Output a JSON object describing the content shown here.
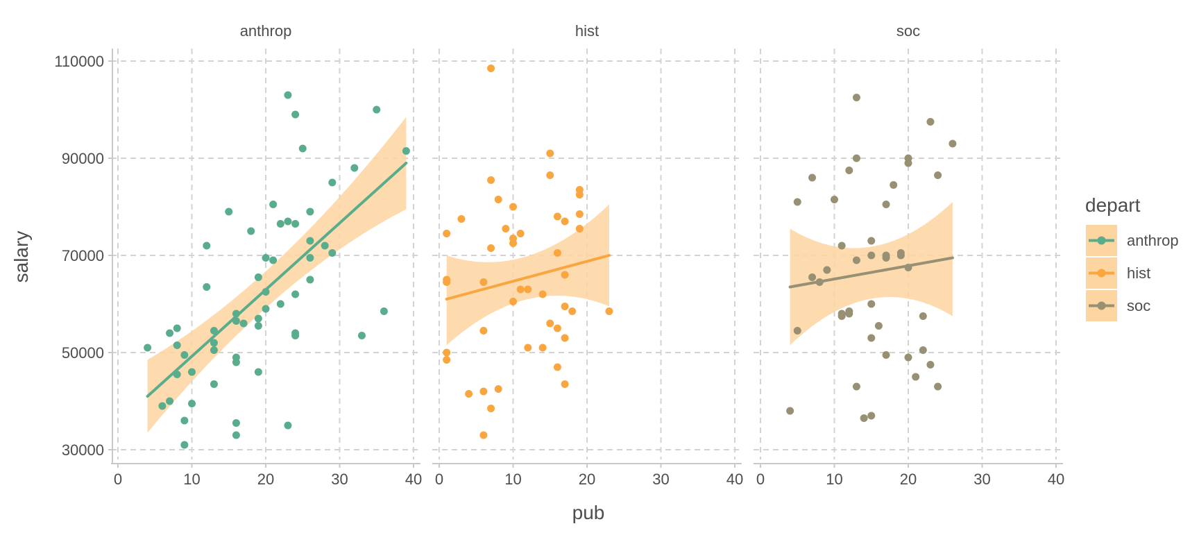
{
  "chart_data": {
    "type": "scatter",
    "facet_by": "depart",
    "xlabel": "pub",
    "ylabel": "salary",
    "xlim": [
      0,
      40
    ],
    "ylim": [
      30000,
      110000
    ],
    "x_ticks": [
      0,
      10,
      20,
      30,
      40
    ],
    "y_ticks": [
      30000,
      50000,
      70000,
      90000,
      110000
    ],
    "x_tick_labels": [
      "0",
      "10",
      "20",
      "30",
      "40"
    ],
    "y_tick_labels": [
      "30000",
      "50000",
      "70000",
      "90000",
      "110000"
    ],
    "grid": true,
    "grid_style": "dashed",
    "legend": {
      "title": "depart",
      "placement": "right",
      "band_color": "#fdd5a0"
    },
    "band_color": "#fdd5a0",
    "panels": [
      {
        "name": "anthrop",
        "color": "#59ad8d",
        "fit": {
          "x": [
            4,
            39
          ],
          "y": [
            41000,
            89000
          ],
          "ci_lower": [
            33500,
            79500
          ],
          "ci_upper": [
            48500,
            98500
          ]
        },
        "points": [
          [
            4,
            51000
          ],
          [
            6,
            39000
          ],
          [
            7,
            40000
          ],
          [
            7,
            54000
          ],
          [
            8,
            55000
          ],
          [
            8,
            51500
          ],
          [
            8,
            45500
          ],
          [
            9,
            49500
          ],
          [
            9,
            36000
          ],
          [
            9,
            31000
          ],
          [
            10,
            39500
          ],
          [
            10,
            46000
          ],
          [
            12,
            72000
          ],
          [
            12,
            63500
          ],
          [
            13,
            54500
          ],
          [
            13,
            52000
          ],
          [
            13,
            50500
          ],
          [
            13,
            43500
          ],
          [
            15,
            79000
          ],
          [
            16,
            58000
          ],
          [
            16,
            56500
          ],
          [
            16,
            49000
          ],
          [
            16,
            48000
          ],
          [
            16,
            35500
          ],
          [
            16,
            33000
          ],
          [
            17,
            56000
          ],
          [
            18,
            75000
          ],
          [
            19,
            65500
          ],
          [
            19,
            57000
          ],
          [
            19,
            55500
          ],
          [
            19,
            46000
          ],
          [
            20,
            69500
          ],
          [
            20,
            62500
          ],
          [
            20,
            59000
          ],
          [
            21,
            80500
          ],
          [
            21,
            69000
          ],
          [
            22,
            76500
          ],
          [
            22,
            60000
          ],
          [
            23,
            103000
          ],
          [
            23,
            77000
          ],
          [
            23,
            35000
          ],
          [
            24,
            99000
          ],
          [
            24,
            76500
          ],
          [
            24,
            62000
          ],
          [
            24,
            54000
          ],
          [
            24,
            53500
          ],
          [
            25,
            92000
          ],
          [
            26,
            79000
          ],
          [
            26,
            73000
          ],
          [
            26,
            69500
          ],
          [
            26,
            65000
          ],
          [
            28,
            72000
          ],
          [
            29,
            85000
          ],
          [
            29,
            70500
          ],
          [
            32,
            88000
          ],
          [
            33,
            53500
          ],
          [
            35,
            100000
          ],
          [
            36,
            58500
          ],
          [
            39,
            91500
          ]
        ]
      },
      {
        "name": "hist",
        "color": "#f9a540",
        "fit": {
          "x": [
            1,
            23
          ],
          "y": [
            61000,
            70000
          ],
          "ci_lower": [
            51500,
            59500
          ],
          "ci_upper": [
            70000,
            80500
          ]
        },
        "points": [
          [
            1,
            74500
          ],
          [
            1,
            65000
          ],
          [
            1,
            64500
          ],
          [
            1,
            50000
          ],
          [
            1,
            48500
          ],
          [
            3,
            77500
          ],
          [
            4,
            41500
          ],
          [
            6,
            64500
          ],
          [
            6,
            54500
          ],
          [
            6,
            42000
          ],
          [
            6,
            33000
          ],
          [
            7,
            108500
          ],
          [
            7,
            85500
          ],
          [
            7,
            71500
          ],
          [
            7,
            38500
          ],
          [
            8,
            81500
          ],
          [
            8,
            42500
          ],
          [
            9,
            75500
          ],
          [
            10,
            80000
          ],
          [
            10,
            73500
          ],
          [
            10,
            72500
          ],
          [
            10,
            60500
          ],
          [
            11,
            74500
          ],
          [
            11,
            63000
          ],
          [
            12,
            63000
          ],
          [
            12,
            51000
          ],
          [
            14,
            62000
          ],
          [
            14,
            51000
          ],
          [
            15,
            91000
          ],
          [
            15,
            86500
          ],
          [
            15,
            56000
          ],
          [
            16,
            78000
          ],
          [
            16,
            70500
          ],
          [
            16,
            55000
          ],
          [
            16,
            47000
          ],
          [
            17,
            77000
          ],
          [
            17,
            66000
          ],
          [
            17,
            59500
          ],
          [
            17,
            53000
          ],
          [
            17,
            43500
          ],
          [
            18,
            58500
          ],
          [
            19,
            83500
          ],
          [
            19,
            82500
          ],
          [
            19,
            78500
          ],
          [
            19,
            75500
          ],
          [
            23,
            58500
          ]
        ]
      },
      {
        "name": "soc",
        "color": "#979074",
        "fit": {
          "x": [
            4,
            26
          ],
          "y": [
            63500,
            69500
          ],
          "ci_lower": [
            51500,
            57500
          ],
          "ci_upper": [
            75500,
            81000
          ]
        },
        "points": [
          [
            4,
            38000
          ],
          [
            5,
            81000
          ],
          [
            5,
            54500
          ],
          [
            7,
            86000
          ],
          [
            7,
            65500
          ],
          [
            8,
            64500
          ],
          [
            9,
            67000
          ],
          [
            10,
            81500
          ],
          [
            11,
            72000
          ],
          [
            11,
            58000
          ],
          [
            11,
            57500
          ],
          [
            12,
            87500
          ],
          [
            12,
            58500
          ],
          [
            12,
            58000
          ],
          [
            13,
            102500
          ],
          [
            13,
            90000
          ],
          [
            13,
            69000
          ],
          [
            13,
            43000
          ],
          [
            14,
            36500
          ],
          [
            15,
            73000
          ],
          [
            15,
            70000
          ],
          [
            15,
            60000
          ],
          [
            15,
            53000
          ],
          [
            15,
            37000
          ],
          [
            16,
            55500
          ],
          [
            17,
            80500
          ],
          [
            17,
            70000
          ],
          [
            17,
            69500
          ],
          [
            17,
            49500
          ],
          [
            18,
            84500
          ],
          [
            19,
            70500
          ],
          [
            19,
            70000
          ],
          [
            20,
            90000
          ],
          [
            20,
            89000
          ],
          [
            20,
            67500
          ],
          [
            20,
            49000
          ],
          [
            21,
            45000
          ],
          [
            22,
            57500
          ],
          [
            22,
            50500
          ],
          [
            23,
            97500
          ],
          [
            23,
            47500
          ],
          [
            24,
            86500
          ],
          [
            24,
            43000
          ],
          [
            26,
            93000
          ]
        ]
      }
    ]
  }
}
